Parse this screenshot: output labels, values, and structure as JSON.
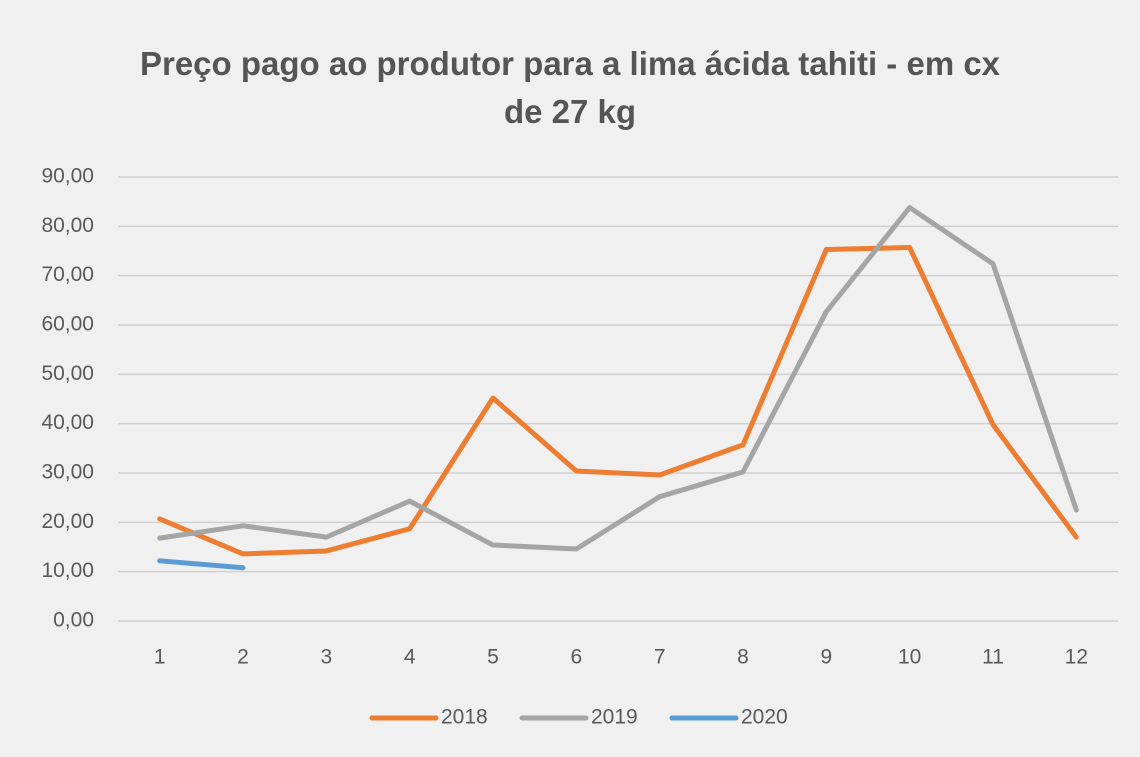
{
  "chart_data": {
    "type": "line",
    "title": "Preço pago ao produtor para a lima ácida tahiti - em cx de 27 kg",
    "categories": [
      "1",
      "2",
      "3",
      "4",
      "5",
      "6",
      "7",
      "8",
      "9",
      "10",
      "11",
      "12"
    ],
    "series": [
      {
        "name": "2018",
        "color": "#ed7d31",
        "values": [
          20.7,
          13.6,
          14.2,
          18.7,
          45.2,
          30.4,
          29.6,
          35.7,
          75.3,
          75.7,
          39.8,
          17.0
        ]
      },
      {
        "name": "2019",
        "color": "#a5a5a5",
        "values": [
          16.8,
          19.3,
          17.0,
          24.3,
          15.4,
          14.6,
          25.2,
          30.2,
          62.7,
          83.8,
          72.4,
          22.5
        ]
      },
      {
        "name": "2020",
        "color": "#5b9bd5",
        "values": [
          12.2,
          10.8,
          null,
          null,
          null,
          null,
          null,
          null,
          null,
          null,
          null,
          null
        ]
      }
    ],
    "ylim": [
      0,
      90
    ],
    "yticks": [
      {
        "value": 0,
        "label": "0,00"
      },
      {
        "value": 10,
        "label": "10,00"
      },
      {
        "value": 20,
        "label": "20,00"
      },
      {
        "value": 30,
        "label": "30,00"
      },
      {
        "value": 40,
        "label": "40,00"
      },
      {
        "value": 50,
        "label": "50,00"
      },
      {
        "value": 60,
        "label": "60,00"
      },
      {
        "value": 70,
        "label": "70,00"
      },
      {
        "value": 80,
        "label": "80,00"
      },
      {
        "value": 90,
        "label": "90,00"
      }
    ],
    "grid": true,
    "legend": "bottom"
  }
}
